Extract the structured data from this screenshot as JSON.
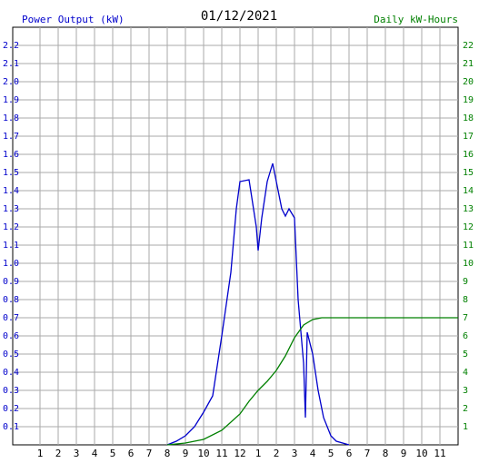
{
  "chart_data": {
    "type": "line",
    "title": "01/12/2021",
    "y_label": "Power Output (kW)",
    "y2_label": "Daily kW-Hours",
    "xlim": [
      -0.5,
      24
    ],
    "xticks": [
      1,
      2,
      3,
      4,
      5,
      6,
      7,
      8,
      9,
      10,
      11,
      12,
      {
        "value": 13,
        "label": "1"
      },
      {
        "value": 14,
        "label": "2"
      },
      {
        "value": 15,
        "label": "3"
      },
      {
        "value": 16,
        "label": "4"
      },
      {
        "value": 17,
        "label": "5"
      },
      {
        "value": 18,
        "label": "6"
      },
      {
        "value": 19,
        "label": "7"
      },
      {
        "value": 20,
        "label": "8"
      },
      {
        "value": 21,
        "label": "9"
      },
      {
        "value": 22,
        "label": "10"
      },
      {
        "value": 23,
        "label": "11"
      }
    ],
    "ylim": [
      0,
      2.3
    ],
    "yticks": [
      0.1,
      0.2,
      0.3,
      0.4,
      0.5,
      0.6,
      0.7,
      0.8,
      0.9,
      {
        "value": 1,
        "label": "1.0"
      },
      1.1,
      1.2,
      1.3,
      1.4,
      1.5,
      1.6,
      1.7,
      1.8,
      1.9,
      {
        "value": 2,
        "label": "2.0"
      },
      2.1,
      2.2
    ],
    "y2lim": [
      0,
      23
    ],
    "y2ticks": [
      1,
      2,
      3,
      4,
      5,
      6,
      7,
      8,
      9,
      10,
      11,
      12,
      13,
      14,
      15,
      16,
      17,
      18,
      19,
      20,
      21,
      22
    ],
    "grid": true,
    "series": [
      {
        "color": "#0000cc",
        "x": [
          8,
          8.5,
          9,
          9.5,
          10,
          10.5,
          11,
          11.5,
          11.8,
          12,
          12.5,
          12.9,
          13,
          13.2,
          13.5,
          13.8,
          14,
          14.3,
          14.5,
          14.7,
          15,
          15.2,
          15.5,
          15.6,
          15.7,
          16,
          16.3,
          16.6,
          17,
          17.3,
          18
        ],
        "values": [
          0,
          0.02,
          0.05,
          0.1,
          0.18,
          0.27,
          0.6,
          0.95,
          1.3,
          1.45,
          1.46,
          1.2,
          1.07,
          1.25,
          1.45,
          1.55,
          1.45,
          1.3,
          1.26,
          1.3,
          1.25,
          0.8,
          0.45,
          0.15,
          0.62,
          0.5,
          0.3,
          0.15,
          0.05,
          0.02,
          0
        ]
      },
      {
        "color": "#008000",
        "axis": "y2",
        "x": [
          8,
          9,
          10,
          11,
          12,
          12.5,
          13,
          13.5,
          14,
          14.5,
          15,
          15.5,
          16,
          16.5,
          24
        ],
        "values": [
          0,
          0.1,
          0.3,
          0.8,
          1.7,
          2.4,
          3.0,
          3.5,
          4.1,
          4.9,
          5.9,
          6.6,
          6.9,
          7.0,
          7.0
        ]
      }
    ]
  }
}
